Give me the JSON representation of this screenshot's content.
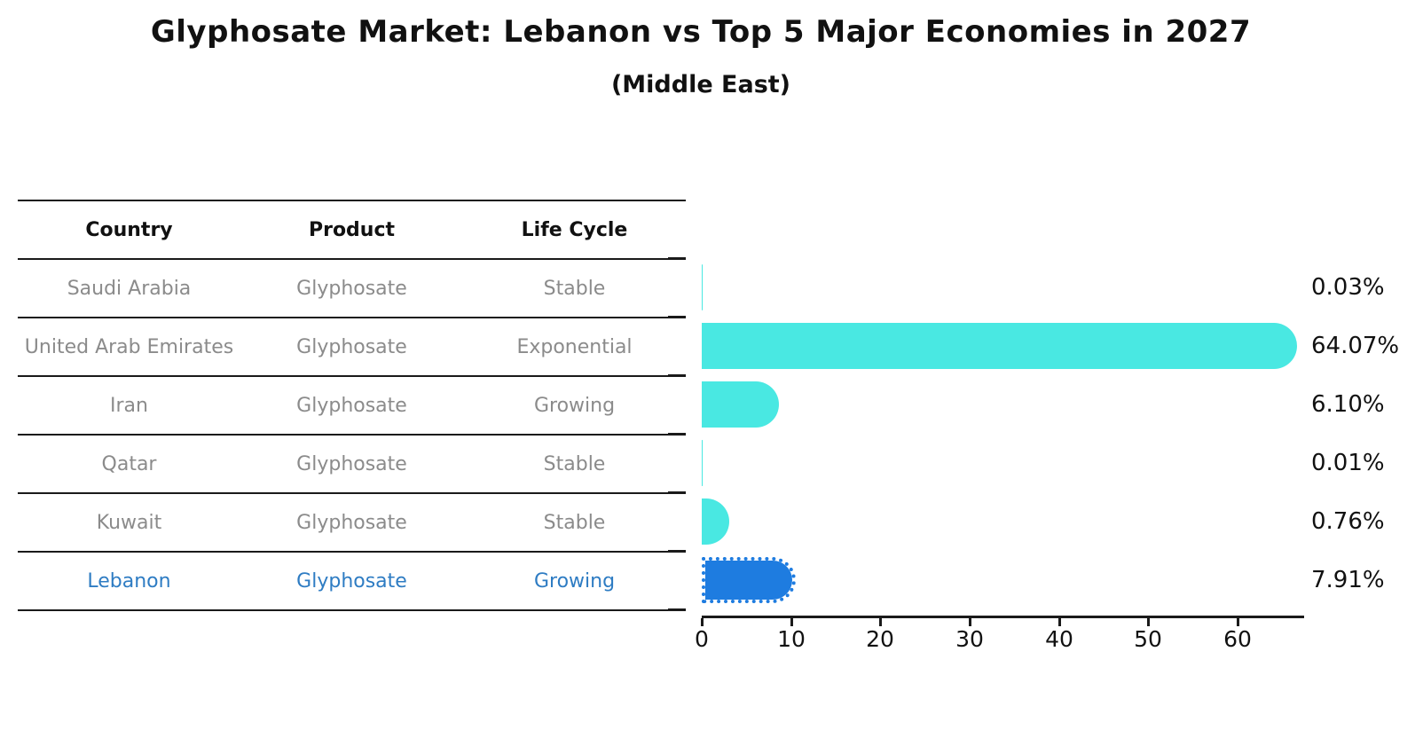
{
  "title": "Glyphosate Market: Lebanon vs Top 5 Major Economies in 2027",
  "subtitle": "(Middle East)",
  "table": {
    "headers": [
      "Country",
      "Product",
      "Life Cycle"
    ],
    "rows": [
      {
        "country": "Saudi Arabia",
        "product": "Glyphosate",
        "life_cycle": "Stable",
        "highlighted": false
      },
      {
        "country": "United Arab Emirates",
        "product": "Glyphosate",
        "life_cycle": "Exponential",
        "highlighted": false
      },
      {
        "country": "Iran",
        "product": "Glyphosate",
        "life_cycle": "Growing",
        "highlighted": false
      },
      {
        "country": "Qatar",
        "product": "Glyphosate",
        "life_cycle": "Stable",
        "highlighted": false
      },
      {
        "country": "Kuwait",
        "product": "Glyphosate",
        "life_cycle": "Stable",
        "highlighted": false
      },
      {
        "country": "Lebanon",
        "product": "Glyphosate",
        "life_cycle": "Growing",
        "highlighted": true
      }
    ]
  },
  "chart_data": {
    "type": "bar",
    "orientation": "horizontal",
    "title": "Glyphosate Market: Lebanon vs Top 5 Major Economies in 2027",
    "subtitle": "(Middle East)",
    "categories": [
      "Saudi Arabia",
      "United Arab Emirates",
      "Iran",
      "Qatar",
      "Kuwait",
      "Lebanon"
    ],
    "values": [
      0.03,
      64.07,
      6.1,
      0.01,
      0.76,
      7.91
    ],
    "value_labels": [
      "0.03%",
      "64.07%",
      "6.10%",
      "0.01%",
      "0.76%",
      "7.91%"
    ],
    "unit": "%",
    "x_ticks": [
      "0",
      "10",
      "20",
      "30",
      "40",
      "50",
      "60"
    ],
    "xlim": [
      0,
      67.5
    ],
    "grid": false,
    "legend": false,
    "highlight_index": 5,
    "colors": {
      "bar": "#49E8E2",
      "highlight_bar": "#1E7CE0",
      "highlight_text": "#2E7CC3",
      "cell_text": "#8B8B8B",
      "heading_text": "#111111",
      "axis": "#1A1A1A"
    }
  }
}
